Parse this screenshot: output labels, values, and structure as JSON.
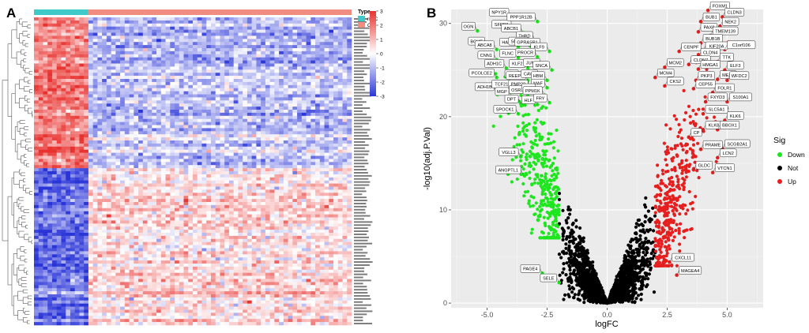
{
  "panels": {
    "a_letter": "A",
    "b_letter": "B"
  },
  "colors": {
    "noc": "#3fc9c9",
    "oc": "#f08c80",
    "heat_high": "#e8322f",
    "heat_mid": "#ffffff",
    "heat_low": "#2a35d8",
    "down": "#1ee61e",
    "not": "#000000",
    "up": "#e61e1e"
  },
  "chart_data": [
    {
      "type": "heatmap",
      "legend": {
        "type_title": "Type",
        "type_items": [
          "nOC",
          "OC"
        ],
        "scale_ticks": [
          "3",
          "2",
          "1",
          "0",
          "-1",
          "-2",
          "-3"
        ],
        "scale_range": [
          -3,
          3
        ]
      },
      "groups": {
        "nOC_columns": 12,
        "OC_columns": 58
      },
      "rows": 100,
      "row_label_note": "gene names printed too small to read"
    },
    {
      "type": "scatter",
      "title": "",
      "xlabel": "logFC",
      "ylabel": "-log10(adj.P.Val)",
      "xlim": [
        -6.5,
        6.5
      ],
      "ylim": [
        -0.5,
        31.5
      ],
      "xticks": [
        -5.0,
        -2.5,
        0.0,
        2.5,
        5.0
      ],
      "xtick_labels": [
        "-5.0",
        "-2.5",
        "0.0",
        "2.5",
        "5.0"
      ],
      "yticks": [
        0,
        10,
        20,
        30
      ],
      "ytick_labels": [
        "0",
        "10",
        "20",
        "30"
      ],
      "legend": {
        "title": "Sig",
        "items": [
          "Down",
          "Not",
          "Up"
        ]
      },
      "labeled_genes": [
        {
          "label": "OGN",
          "x": -5.4,
          "y": 29.2,
          "sig": "Down"
        },
        {
          "label": "BCHE",
          "x": -5.0,
          "y": 27.6,
          "sig": "Down"
        },
        {
          "label": "NPY1R",
          "x": -4.0,
          "y": 30.7,
          "sig": "Down"
        },
        {
          "label": "SFRP1",
          "x": -3.9,
          "y": 29.4,
          "sig": "Down"
        },
        {
          "label": "ABCB1",
          "x": -3.5,
          "y": 29.0,
          "sig": "Down"
        },
        {
          "label": "PPP1R12B",
          "x": -2.9,
          "y": 30.2,
          "sig": "Down"
        },
        {
          "label": "THBD",
          "x": -3.0,
          "y": 28.2,
          "sig": "Down"
        },
        {
          "label": "ABCA8",
          "x": -4.6,
          "y": 27.2,
          "sig": "Down"
        },
        {
          "label": "HAS1",
          "x": -3.7,
          "y": 27.5,
          "sig": "Down"
        },
        {
          "label": "SOCS2",
          "x": -3.2,
          "y": 27.6,
          "sig": "Down"
        },
        {
          "label": "GPRASP1",
          "x": -2.7,
          "y": 27.5,
          "sig": "Down"
        },
        {
          "label": "KLF9",
          "x": -2.4,
          "y": 27.0,
          "sig": "Down"
        },
        {
          "label": "CNN1",
          "x": -4.6,
          "y": 26.1,
          "sig": "Down"
        },
        {
          "label": "FLNC",
          "x": -3.7,
          "y": 26.3,
          "sig": "Down"
        },
        {
          "label": "PROCR",
          "x": -2.9,
          "y": 26.4,
          "sig": "Down"
        },
        {
          "label": "ADH1C",
          "x": -4.2,
          "y": 25.2,
          "sig": "Down"
        },
        {
          "label": "KLF2",
          "x": -3.3,
          "y": 25.2,
          "sig": "Down"
        },
        {
          "label": "JUNB",
          "x": -2.7,
          "y": 25.3,
          "sig": "Down"
        },
        {
          "label": "SNCA",
          "x": -2.3,
          "y": 25.0,
          "sig": "Down"
        },
        {
          "label": "PCOLCE2",
          "x": -4.6,
          "y": 24.2,
          "sig": "Down"
        },
        {
          "label": "HBB",
          "x": -3.6,
          "y": 24.1,
          "sig": "Down"
        },
        {
          "label": "REEP1",
          "x": -3.3,
          "y": 23.9,
          "sig": "Down"
        },
        {
          "label": "CAV1",
          "x": -2.8,
          "y": 24.1,
          "sig": "Down"
        },
        {
          "label": "HBM",
          "x": -2.5,
          "y": 23.9,
          "sig": "Down"
        },
        {
          "label": "ADH1B",
          "x": -4.6,
          "y": 22.7,
          "sig": "Down"
        },
        {
          "label": "TCF21",
          "x": -3.9,
          "y": 23.0,
          "sig": "Down"
        },
        {
          "label": "PMP22",
          "x": -3.2,
          "y": 23.0,
          "sig": "Down"
        },
        {
          "label": "MAF",
          "x": -2.5,
          "y": 23.1,
          "sig": "Down"
        },
        {
          "label": "MGP",
          "x": -4.0,
          "y": 22.2,
          "sig": "Down"
        },
        {
          "label": "OSR1",
          "x": -3.3,
          "y": 22.4,
          "sig": "Down"
        },
        {
          "label": "HRC",
          "x": -2.9,
          "y": 22.6,
          "sig": "Down"
        },
        {
          "label": "PPM1K",
          "x": -2.6,
          "y": 22.3,
          "sig": "Down"
        },
        {
          "label": "DPT",
          "x": -3.6,
          "y": 21.4,
          "sig": "Down"
        },
        {
          "label": "HLF",
          "x": -2.9,
          "y": 21.3,
          "sig": "Down"
        },
        {
          "label": "FRY",
          "x": -2.4,
          "y": 21.5,
          "sig": "Down"
        },
        {
          "label": "SPOCK1",
          "x": -3.7,
          "y": 20.3,
          "sig": "Down"
        },
        {
          "label": "VGLL3",
          "x": -3.6,
          "y": 15.7,
          "sig": "Down"
        },
        {
          "label": "ANGPTL1",
          "x": -3.5,
          "y": 13.8,
          "sig": "Down"
        },
        {
          "label": "PAGE4",
          "x": -2.7,
          "y": 3.2,
          "sig": "Down"
        },
        {
          "label": "SELE",
          "x": -2.0,
          "y": 2.2,
          "sig": "Down"
        },
        {
          "label": "FOXM1",
          "x": 4.2,
          "y": 31.4,
          "sig": "Up"
        },
        {
          "label": "CLDN3",
          "x": 4.8,
          "y": 30.7,
          "sig": "Up"
        },
        {
          "label": "BUB1",
          "x": 3.9,
          "y": 30.2,
          "sig": "Up"
        },
        {
          "label": "NEK2",
          "x": 4.7,
          "y": 29.7,
          "sig": "Up"
        },
        {
          "label": "PAX8",
          "x": 3.8,
          "y": 29.1,
          "sig": "Up"
        },
        {
          "label": "TMEM139",
          "x": 4.3,
          "y": 28.7,
          "sig": "Up"
        },
        {
          "label": "BUB1B",
          "x": 3.9,
          "y": 27.9,
          "sig": "Up"
        },
        {
          "label": "KIF20A",
          "x": 4.0,
          "y": 27.1,
          "sig": "Up"
        },
        {
          "label": "C1orf106",
          "x": 4.9,
          "y": 27.2,
          "sig": "Up"
        },
        {
          "label": "CENPF",
          "x": 3.0,
          "y": 27.0,
          "sig": "Up"
        },
        {
          "label": "CLDN4",
          "x": 3.8,
          "y": 26.4,
          "sig": "Up"
        },
        {
          "label": "TTK",
          "x": 4.6,
          "y": 25.9,
          "sig": "Up"
        },
        {
          "label": "CLDN7",
          "x": 3.4,
          "y": 25.6,
          "sig": "Up"
        },
        {
          "label": "HMGA1",
          "x": 3.8,
          "y": 25.1,
          "sig": "Up"
        },
        {
          "label": "ELF3",
          "x": 4.9,
          "y": 25.0,
          "sig": "Up"
        },
        {
          "label": "MCM2",
          "x": 2.4,
          "y": 25.3,
          "sig": "Up"
        },
        {
          "label": "MCM4",
          "x": 2.0,
          "y": 24.2,
          "sig": "Up"
        },
        {
          "label": "MELK",
          "x": 4.6,
          "y": 24.0,
          "sig": "Up"
        },
        {
          "label": "PKP3",
          "x": 3.7,
          "y": 23.9,
          "sig": "Up"
        },
        {
          "label": "WFDC2",
          "x": 5.0,
          "y": 23.9,
          "sig": "Up"
        },
        {
          "label": "CKS2",
          "x": 2.4,
          "y": 23.3,
          "sig": "Up"
        },
        {
          "label": "CEP55",
          "x": 3.6,
          "y": 23.0,
          "sig": "Up"
        },
        {
          "label": "FOLR1",
          "x": 4.4,
          "y": 22.6,
          "sig": "Up"
        },
        {
          "label": "FXYD3",
          "x": 4.1,
          "y": 21.6,
          "sig": "Up"
        },
        {
          "label": "S100A1",
          "x": 5.0,
          "y": 21.6,
          "sig": "Up"
        },
        {
          "label": "SLC5A1",
          "x": 4.0,
          "y": 20.3,
          "sig": "Up"
        },
        {
          "label": "KLK6",
          "x": 4.9,
          "y": 19.6,
          "sig": "Up"
        },
        {
          "label": "KLK8",
          "x": 4.0,
          "y": 18.6,
          "sig": "Up"
        },
        {
          "label": "BBOX1",
          "x": 4.6,
          "y": 18.6,
          "sig": "Up"
        },
        {
          "label": "CP",
          "x": 3.4,
          "y": 17.8,
          "sig": "Up"
        },
        {
          "label": "PRAME",
          "x": 3.9,
          "y": 16.5,
          "sig": "Up"
        },
        {
          "label": "SCGB2A1",
          "x": 4.8,
          "y": 16.6,
          "sig": "Up"
        },
        {
          "label": "LCN2",
          "x": 4.6,
          "y": 15.6,
          "sig": "Up"
        },
        {
          "label": "GLDC",
          "x": 3.6,
          "y": 14.3,
          "sig": "Up"
        },
        {
          "label": "VTCN1",
          "x": 4.4,
          "y": 14.0,
          "sig": "Up"
        },
        {
          "label": "CXCL11",
          "x": 2.6,
          "y": 4.4,
          "sig": "Up"
        },
        {
          "label": "MAGEA4",
          "x": 2.9,
          "y": 3.0,
          "sig": "Up"
        }
      ]
    }
  ]
}
